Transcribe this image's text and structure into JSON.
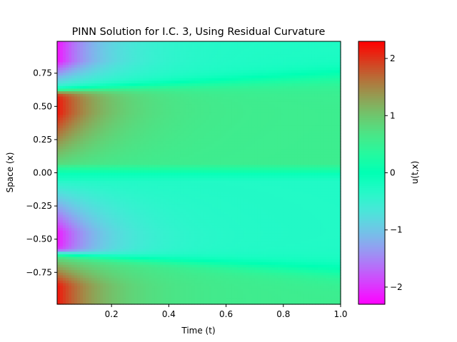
{
  "chart_data": {
    "type": "heatmap",
    "title": "PINN Solution for I.C. 3, Using Residual Curvature",
    "xlabel": "Time (t)",
    "ylabel": "Space (x)",
    "xlim": [
      0.01,
      1.0
    ],
    "ylim": [
      -0.99,
      0.99
    ],
    "x_ticks": [
      {
        "value": 0.2,
        "label": "0.2"
      },
      {
        "value": 0.4,
        "label": "0.4"
      },
      {
        "value": 0.6,
        "label": "0.6"
      },
      {
        "value": 0.8,
        "label": "0.8"
      },
      {
        "value": 1.0,
        "label": "1.0"
      }
    ],
    "y_ticks": [
      {
        "value": 0.75,
        "label": "0.75"
      },
      {
        "value": 0.5,
        "label": "0.50"
      },
      {
        "value": 0.25,
        "label": "0.25"
      },
      {
        "value": 0.0,
        "label": "0.00"
      },
      {
        "value": -0.25,
        "label": "−0.25"
      },
      {
        "value": -0.5,
        "label": "−0.50"
      },
      {
        "value": -0.75,
        "label": "−0.75"
      }
    ],
    "colormap": "rainbow",
    "colorbar": {
      "label": "u(t,x)",
      "range": [
        -2.3,
        2.3
      ],
      "ticks": [
        {
          "value": 2,
          "label": "2"
        },
        {
          "value": 1,
          "label": "1"
        },
        {
          "value": 0,
          "label": "0"
        },
        {
          "value": -1,
          "label": "−1"
        },
        {
          "value": -2,
          "label": "−2"
        }
      ]
    },
    "structure": {
      "shocks": [
        {
          "x_at_t0": 0.61,
          "x_at_t1": 0.73,
          "left_value": 2.3,
          "right_value": -2.3
        },
        {
          "x_at_t0": -0.6,
          "x_at_t1": -0.74,
          "left_value": 2.3,
          "right_value": -2.3
        }
      ],
      "far_field_value": 0.55,
      "zero_line_x": 0.0
    },
    "grid": false,
    "legend": "colorbar-right"
  }
}
